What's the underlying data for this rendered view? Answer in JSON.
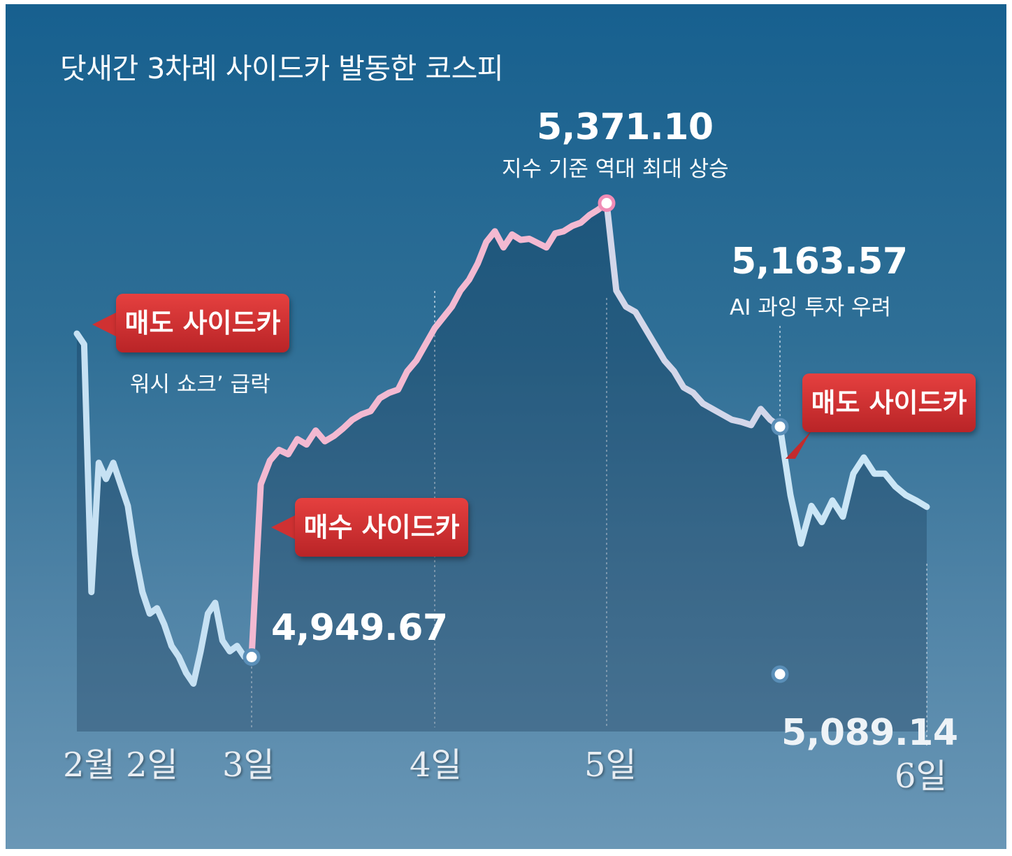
{
  "chart_data": {
    "type": "line",
    "title": "닷새간 3차례 사이드카 발동한 코스피",
    "x_labels": [
      "2월 2일",
      "3일",
      "4일",
      "5일",
      "6일"
    ],
    "grid": false,
    "series": [
      {
        "name": "",
        "segments": [
          {
            "color": "#c6e1f3",
            "day_start": 2.0,
            "day_end": 3.0,
            "values": [
              5250,
              5240,
              5010,
              5130,
              5115,
              5130,
              5110,
              5090,
              5045,
              5010,
              4990,
              4995,
              4980,
              4960,
              4950,
              4935,
              4925,
              4955,
              4990,
              5000,
              4965,
              4955,
              4960,
              4950,
              4949.67
            ]
          },
          {
            "color": "#f3b9d1",
            "day_start": 3.0,
            "day_end": 5.0,
            "values": [
              4949.67,
              5110,
              5132,
              5142,
              5138,
              5152,
              5147,
              5160,
              5150,
              5155,
              5162,
              5170,
              5175,
              5178,
              5190,
              5195,
              5198,
              5215,
              5225,
              5240,
              5255,
              5265,
              5275,
              5290,
              5300,
              5315,
              5335,
              5345,
              5330,
              5342,
              5337,
              5338,
              5334,
              5330,
              5343,
              5345,
              5350,
              5353,
              5360,
              5365,
              5371.1
            ]
          },
          {
            "color": "#d3d7ea",
            "day_start": 5.0,
            "day_end": 5.975,
            "values": [
              5371.1,
              5290,
              5275,
              5270,
              5255,
              5240,
              5225,
              5215,
              5200,
              5195,
              5185,
              5180,
              5175,
              5170,
              5168,
              5165,
              5180,
              5170,
              5163.57
            ]
          },
          {
            "color": "#cbe6f6",
            "day_start": 5.975,
            "day_end": 6.0,
            "values": [
              5163.57,
              5100,
              5055,
              5090,
              5075,
              5095,
              5080,
              5120,
              5135,
              5120,
              5120,
              5108,
              5100,
              5095,
              5089.14
            ]
          }
        ]
      }
    ],
    "markers": [
      {
        "day": 3.0,
        "value": 4949.67
      },
      {
        "day": 5.0,
        "value": 5371.1
      },
      {
        "day": 5.975,
        "value": 5163.57
      },
      {
        "day": 5.975,
        "value": 5089.14
      }
    ],
    "annotations": {
      "low_value": "4,949.67",
      "peak_value": "5,371.10",
      "peak_note": "지수 기준 역대 최대 상승",
      "mid_value": "5,163.57",
      "mid_note": "AI 과잉 투자 우려",
      "end_value": "5,089.14",
      "callout_sell_1": "매도 사이드카",
      "callout_sell_1_note": "워시 쇼크’ 급락",
      "callout_buy": "매수 사이드카",
      "callout_sell_2": "매도 사이드카"
    }
  }
}
